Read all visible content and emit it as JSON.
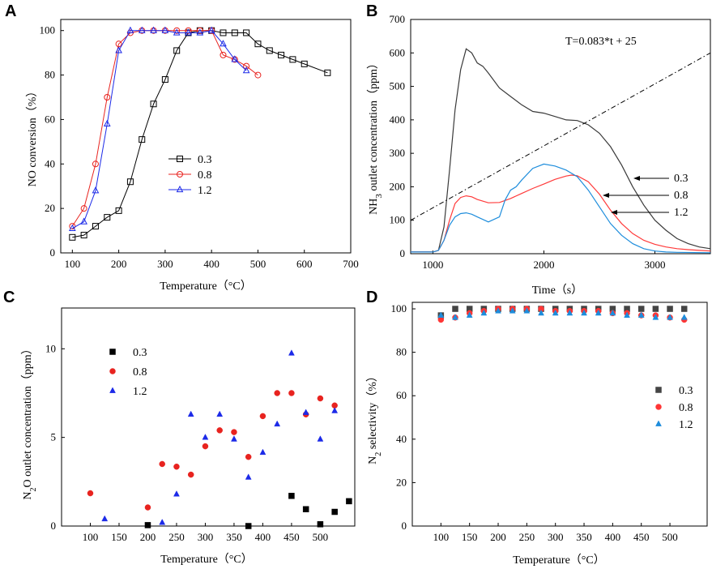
{
  "chart_data": [
    {
      "panel": "A",
      "type": "line",
      "xlabel": "Temperature（°C）",
      "ylabel": "NO conversion（%）",
      "xlim": [
        75,
        700
      ],
      "ylim": [
        0,
        105
      ],
      "xticks": [
        100,
        200,
        300,
        400,
        500,
        600,
        700
      ],
      "yticks": [
        0,
        20,
        40,
        60,
        80,
        100
      ],
      "legend_position": "center-right",
      "series": [
        {
          "name": "0.3",
          "color": "#000000",
          "marker": "square",
          "x": [
            100,
            125,
            150,
            175,
            200,
            225,
            250,
            275,
            300,
            325,
            350,
            375,
            400,
            425,
            450,
            475,
            500,
            525,
            550,
            575,
            600,
            650
          ],
          "y": [
            7,
            8,
            12,
            16,
            19,
            32,
            51,
            67,
            78,
            91,
            99,
            100,
            100,
            99,
            99,
            99,
            94,
            91,
            89,
            87,
            85,
            81
          ]
        },
        {
          "name": "0.8",
          "color": "#e8231f",
          "marker": "circle",
          "x": [
            100,
            125,
            150,
            175,
            200,
            225,
            250,
            275,
            300,
            325,
            350,
            375,
            400,
            425,
            450,
            475,
            500
          ],
          "y": [
            12,
            20,
            40,
            70,
            94,
            99,
            100,
            100,
            100,
            100,
            100,
            100,
            100,
            89,
            87,
            84,
            80
          ]
        },
        {
          "name": "1.2",
          "color": "#1c2ae8",
          "marker": "triangle",
          "x": [
            100,
            125,
            150,
            175,
            200,
            225,
            250,
            275,
            300,
            325,
            350,
            375,
            400,
            425,
            450,
            475
          ],
          "y": [
            11,
            14,
            28,
            58,
            91,
            100,
            100,
            100,
            100,
            99,
            99,
            99,
            100,
            94,
            87,
            82
          ]
        }
      ]
    },
    {
      "panel": "B",
      "type": "line",
      "xlabel": "Time（s）",
      "ylabel": "NH3 outlet concentration（ppm）",
      "xlim": [
        800,
        3500
      ],
      "ylim": [
        0,
        700
      ],
      "xticks": [
        1000,
        2000,
        3000
      ],
      "yticks": [
        0,
        100,
        200,
        300,
        400,
        500,
        600,
        700
      ],
      "annotation": "T=0.083*t + 25",
      "labels": [
        "0.3",
        "0.8",
        "1.2"
      ],
      "series": [
        {
          "name": "0.3",
          "color": "#3a3a3a",
          "x": [
            800,
            1000,
            1050,
            1100,
            1150,
            1200,
            1250,
            1300,
            1350,
            1400,
            1450,
            1500,
            1600,
            1700,
            1800,
            1900,
            2000,
            2100,
            2200,
            2300,
            2400,
            2500,
            2600,
            2700,
            2800,
            2900,
            3000,
            3100,
            3200,
            3300,
            3400,
            3500
          ],
          "y": [
            5,
            5,
            10,
            80,
            250,
            430,
            550,
            612,
            600,
            570,
            560,
            540,
            495,
            470,
            445,
            425,
            420,
            410,
            400,
            398,
            385,
            360,
            320,
            265,
            200,
            145,
            100,
            70,
            45,
            30,
            20,
            15
          ]
        },
        {
          "name": "0.8",
          "color": "#ff3a3a",
          "x": [
            800,
            1000,
            1050,
            1100,
            1150,
            1200,
            1250,
            1300,
            1350,
            1400,
            1500,
            1600,
            1700,
            1800,
            1900,
            2000,
            2100,
            2200,
            2250,
            2300,
            2400,
            2500,
            2600,
            2700,
            2800,
            2900,
            3000,
            3100,
            3200,
            3300,
            3400,
            3500
          ],
          "y": [
            5,
            5,
            10,
            40,
            100,
            150,
            168,
            173,
            170,
            162,
            152,
            153,
            165,
            180,
            195,
            208,
            222,
            232,
            235,
            233,
            215,
            178,
            130,
            90,
            60,
            40,
            28,
            20,
            15,
            12,
            10,
            8
          ]
        },
        {
          "name": "1.2",
          "color": "#1e8ddc",
          "x": [
            800,
            1000,
            1050,
            1100,
            1150,
            1200,
            1250,
            1300,
            1350,
            1400,
            1500,
            1600,
            1650,
            1700,
            1750,
            1800,
            1900,
            2000,
            2100,
            2200,
            2300,
            2400,
            2500,
            2600,
            2700,
            2800,
            2900,
            3000,
            3100,
            3200,
            3500
          ],
          "y": [
            5,
            5,
            10,
            40,
            85,
            110,
            120,
            122,
            118,
            110,
            95,
            110,
            160,
            190,
            200,
            220,
            255,
            268,
            262,
            250,
            230,
            190,
            140,
            90,
            55,
            30,
            15,
            8,
            5,
            4,
            3
          ]
        },
        {
          "name": "T=0.083*t + 25",
          "color": "#000000",
          "style": "dashdot",
          "x": [
            800,
            3500
          ],
          "y": [
            100,
            600
          ]
        }
      ]
    },
    {
      "panel": "C",
      "type": "scatter",
      "xlabel": "Temperature（°C）",
      "ylabel": "N2O outlet concentration（ppm）",
      "xlim": [
        50,
        560
      ],
      "ylim": [
        0,
        12.3
      ],
      "xticks": [
        100,
        150,
        200,
        250,
        300,
        350,
        400,
        450,
        500
      ],
      "yticks": [
        0,
        5,
        10
      ],
      "legend_position": "top-left",
      "series": [
        {
          "name": "0.3",
          "color": "#000000",
          "marker": "square",
          "x": [
            200,
            375,
            450,
            475,
            500,
            525,
            550
          ],
          "y": [
            0.05,
            0.0,
            1.7,
            0.95,
            0.1,
            0.8,
            1.4
          ]
        },
        {
          "name": "0.8",
          "color": "#e8231f",
          "marker": "circle",
          "x": [
            100,
            200,
            225,
            250,
            275,
            300,
            325,
            350,
            375,
            400,
            425,
            450,
            475,
            500,
            525
          ],
          "y": [
            1.85,
            1.05,
            3.5,
            3.35,
            2.9,
            4.5,
            5.4,
            5.3,
            3.9,
            6.2,
            7.5,
            7.5,
            6.3,
            7.2,
            6.8
          ]
        },
        {
          "name": "1.2",
          "color": "#1c2ae8",
          "marker": "triangle",
          "x": [
            125,
            225,
            250,
            275,
            300,
            325,
            350,
            375,
            400,
            425,
            450,
            475,
            500,
            525
          ],
          "y": [
            0.4,
            0.2,
            1.8,
            6.3,
            5.0,
            6.3,
            4.9,
            2.75,
            4.15,
            5.75,
            9.75,
            6.4,
            4.9,
            6.5
          ]
        }
      ]
    },
    {
      "panel": "D",
      "type": "scatter",
      "xlabel": "Temperature（°C）",
      "ylabel": "N2 selectivity（%）",
      "xlim": [
        50,
        565
      ],
      "ylim": [
        0,
        103
      ],
      "xticks": [
        100,
        150,
        200,
        250,
        300,
        350,
        400,
        450,
        500
      ],
      "yticks": [
        0,
        20,
        40,
        60,
        80,
        100
      ],
      "legend_position": "center-right",
      "series": [
        {
          "name": "0.3",
          "color": "#444444",
          "marker": "square",
          "x": [
            100,
            125,
            150,
            175,
            200,
            225,
            250,
            275,
            300,
            325,
            350,
            375,
            400,
            425,
            450,
            475,
            500,
            525
          ],
          "y": [
            97,
            100,
            100,
            100,
            100,
            100,
            100,
            100,
            100,
            100,
            100,
            100,
            100,
            100,
            100,
            100,
            100,
            100
          ]
        },
        {
          "name": "0.8",
          "color": "#ff3535",
          "marker": "circle",
          "x": [
            100,
            125,
            150,
            175,
            200,
            225,
            250,
            275,
            300,
            325,
            350,
            375,
            400,
            425,
            450,
            475,
            500,
            525
          ],
          "y": [
            95,
            96,
            98,
            99,
            100,
            100,
            100,
            100,
            99,
            99,
            99,
            99,
            98,
            98,
            97,
            97,
            96,
            95
          ]
        },
        {
          "name": "1.2",
          "color": "#1e8ddc",
          "marker": "triangle",
          "x": [
            100,
            125,
            150,
            175,
            200,
            225,
            250,
            275,
            300,
            325,
            350,
            375,
            400,
            425,
            450,
            475,
            500,
            525
          ],
          "y": [
            97,
            96,
            97,
            98,
            99,
            99,
            99,
            98,
            98,
            98,
            98,
            98,
            98,
            97,
            97,
            96,
            96,
            96
          ]
        }
      ]
    }
  ],
  "panels": {
    "a": {
      "letter": "A",
      "xlabel": "Temperature（°C）",
      "ylabel": "NO conversion（%）"
    },
    "b": {
      "letter": "B",
      "xlabel": "Time（s）",
      "ylabel_main": "NH",
      "ylabel_sub": "3",
      "ylabel_rest": " outlet concentration（ppm）",
      "annotation": "T=0.083*t + 25"
    },
    "c": {
      "letter": "C",
      "xlabel": "Temperature（°C）",
      "ylabel_main": "N",
      "ylabel_sub": "2",
      "ylabel_rest": "O outlet concentration（ppm）"
    },
    "d": {
      "letter": "D",
      "xlabel": "Temperature（°C）",
      "ylabel_main": "N",
      "ylabel_sub": "2",
      "ylabel_rest": " selectivity（%）"
    }
  }
}
